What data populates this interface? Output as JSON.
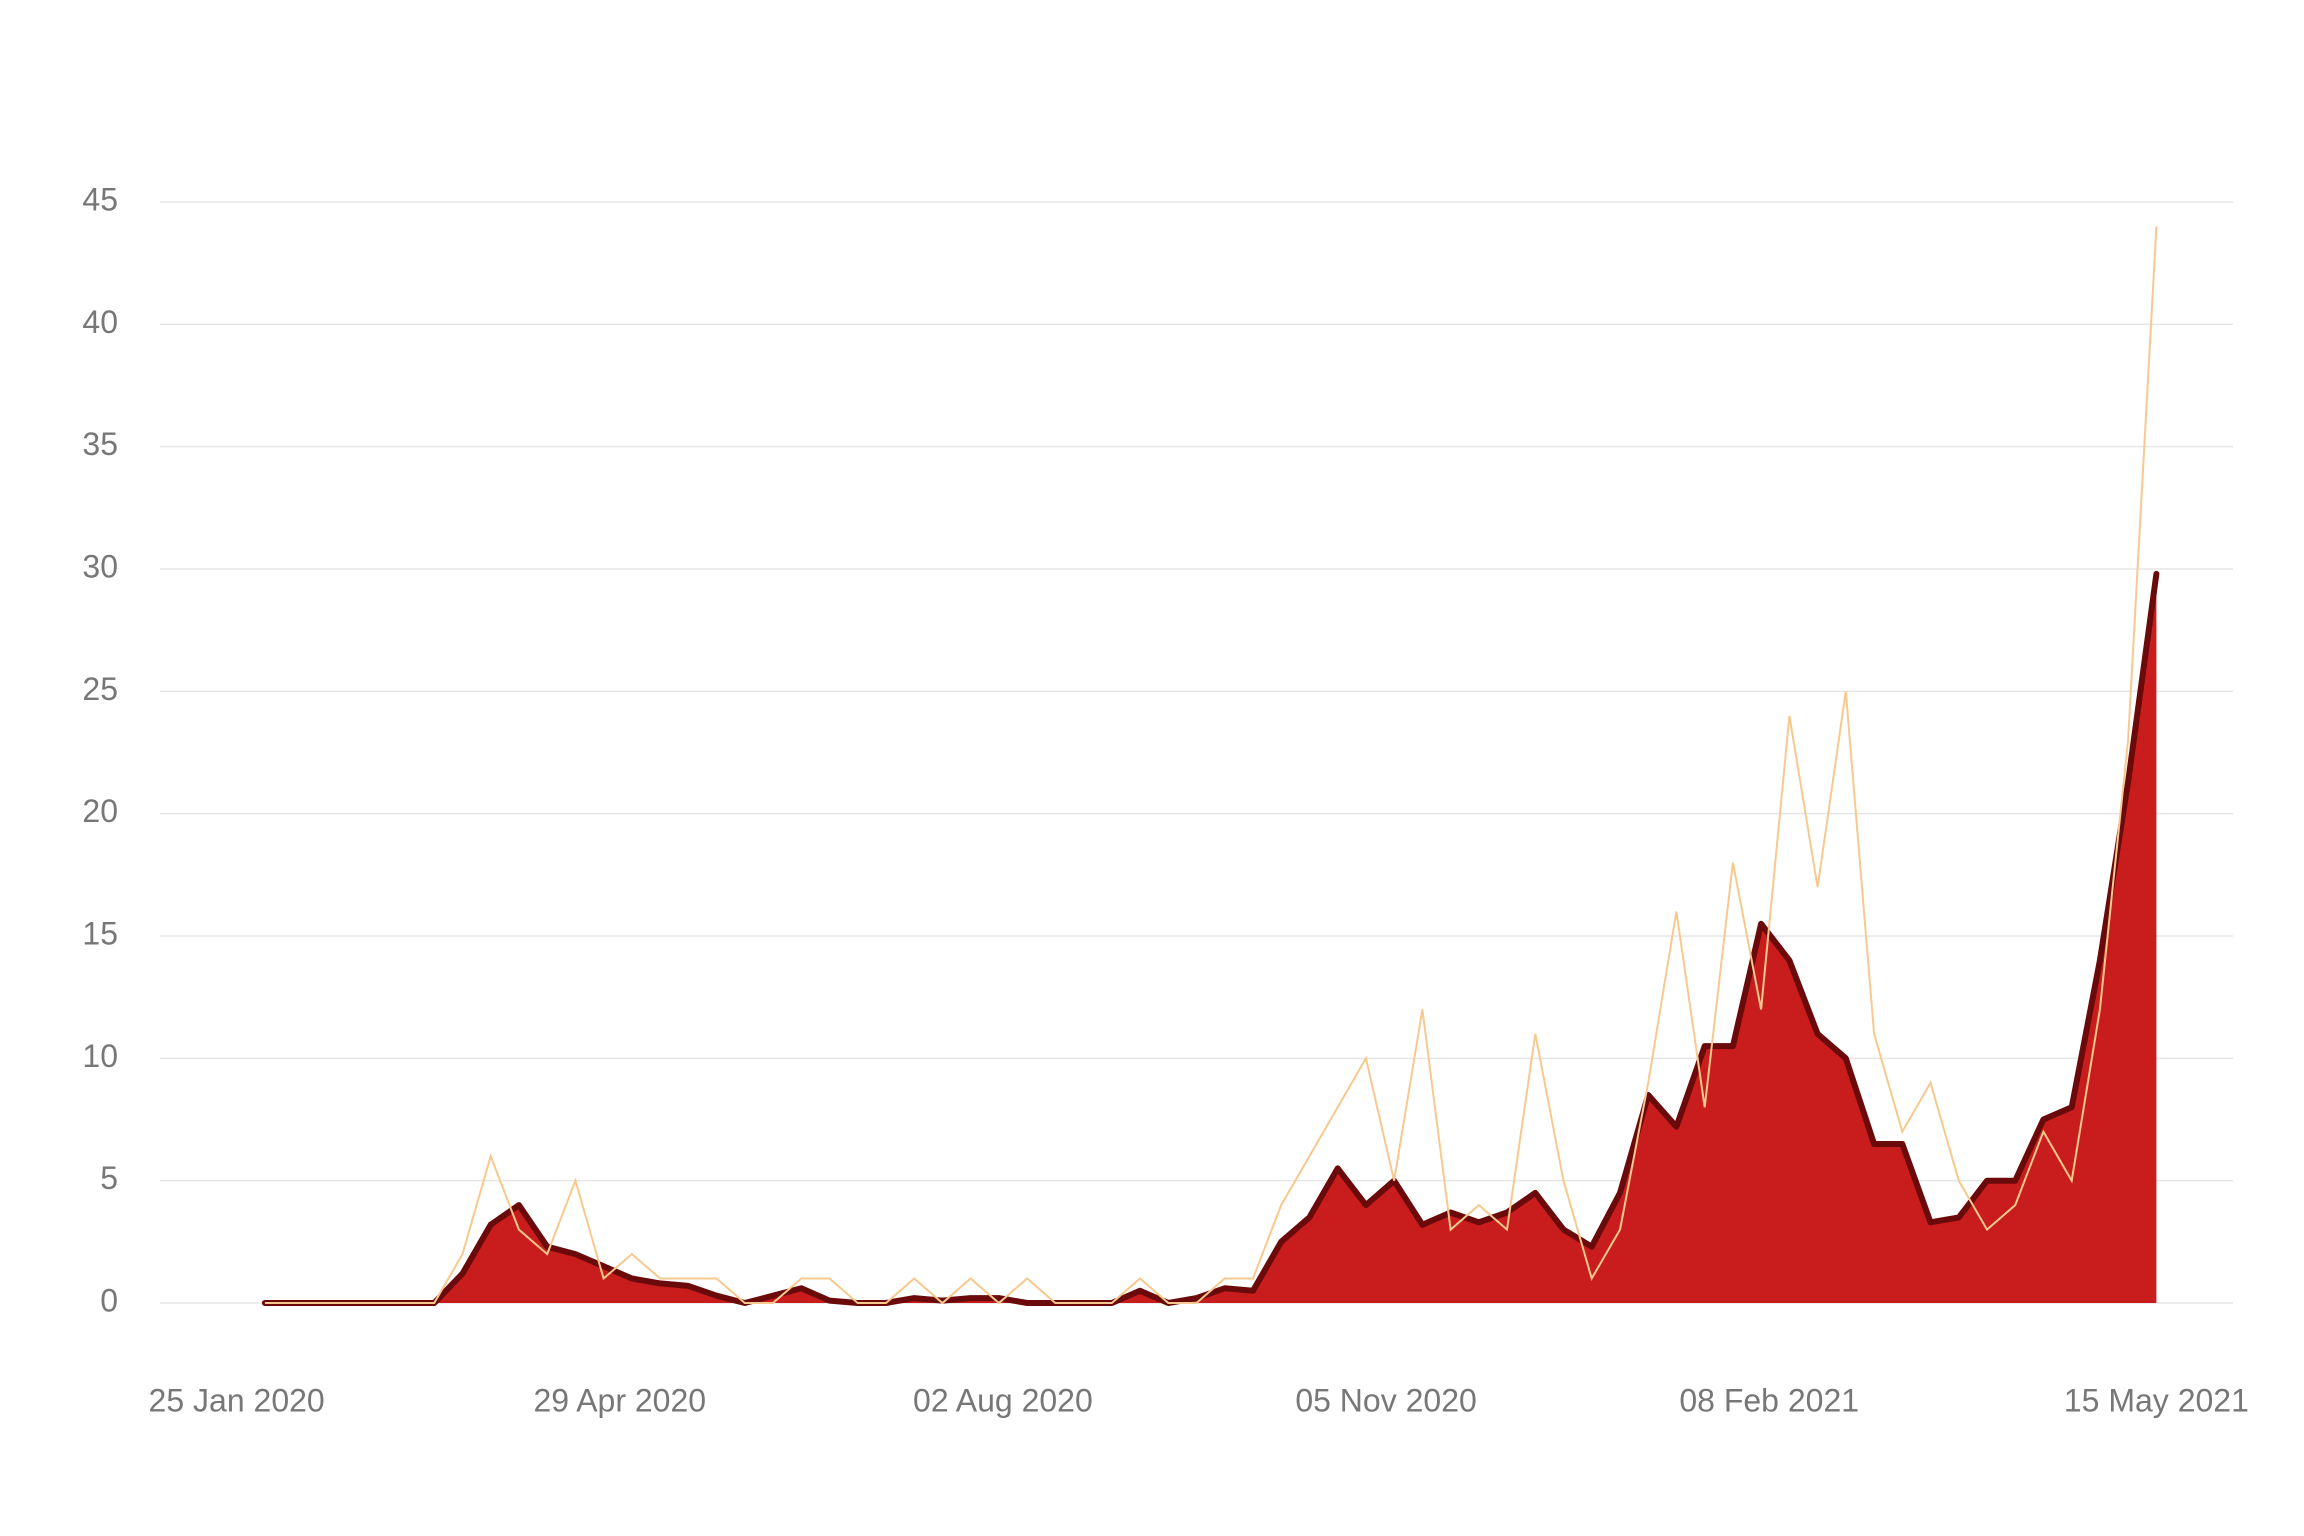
{
  "chart_data": {
    "type": "line",
    "x": [
      "2020-02-01",
      "2020-02-08",
      "2020-02-15",
      "2020-02-22",
      "2020-02-29",
      "2020-03-07",
      "2020-03-14",
      "2020-03-21",
      "2020-03-28",
      "2020-04-04",
      "2020-04-11",
      "2020-04-18",
      "2020-04-25",
      "2020-05-02",
      "2020-05-09",
      "2020-05-16",
      "2020-05-23",
      "2020-05-30",
      "2020-06-06",
      "2020-06-13",
      "2020-06-20",
      "2020-06-27",
      "2020-07-04",
      "2020-07-11",
      "2020-07-18",
      "2020-07-25",
      "2020-08-01",
      "2020-08-08",
      "2020-08-15",
      "2020-08-22",
      "2020-08-29",
      "2020-09-05",
      "2020-09-12",
      "2020-09-19",
      "2020-09-26",
      "2020-10-03",
      "2020-10-10",
      "2020-10-17",
      "2020-10-24",
      "2020-10-31",
      "2020-11-07",
      "2020-11-14",
      "2020-11-21",
      "2020-11-28",
      "2020-12-05",
      "2020-12-12",
      "2020-12-19",
      "2020-12-26",
      "2021-01-02",
      "2021-01-09",
      "2021-01-16",
      "2021-01-23",
      "2021-01-30",
      "2021-02-06",
      "2021-02-13",
      "2021-02-20",
      "2021-02-27",
      "2021-03-06",
      "2021-03-13",
      "2021-03-20",
      "2021-03-27",
      "2021-04-03",
      "2021-04-10",
      "2021-04-17",
      "2021-04-24",
      "2021-05-01",
      "2021-05-08",
      "2021-05-15"
    ],
    "series": [
      {
        "color": "#f7c98e",
        "style": "line",
        "values": [
          0,
          0,
          0,
          0,
          0,
          0,
          0,
          2,
          6,
          3,
          2,
          5,
          1,
          2,
          1,
          1,
          1,
          0,
          0,
          1,
          1,
          0,
          0,
          1,
          0,
          1,
          0,
          1,
          0,
          0,
          0,
          1,
          0,
          0,
          1,
          1,
          4,
          6,
          8,
          10,
          5,
          12,
          3,
          4,
          3,
          11,
          5,
          1,
          3,
          9,
          16,
          8,
          18,
          12,
          24,
          17,
          25,
          11,
          7,
          9,
          5,
          3,
          4,
          7,
          5,
          12,
          23,
          44
        ]
      },
      {
        "color": "#c91d1d",
        "line_color": "#6b0a0a",
        "style": "area",
        "values": [
          0,
          0,
          0,
          0,
          0,
          0,
          0,
          1.2,
          3.2,
          4,
          2.3,
          2,
          1.5,
          1,
          0.8,
          0.7,
          0.3,
          0,
          0.3,
          0.6,
          0.1,
          0,
          0,
          0.2,
          0.1,
          0.2,
          0.2,
          0,
          0,
          0,
          0,
          0.5,
          0,
          0.2,
          0.6,
          0.5,
          2.5,
          3.5,
          5.5,
          4,
          5,
          3.2,
          3.7,
          3.3,
          3.7,
          4.5,
          3,
          2.3,
          4.5,
          8.5,
          7.2,
          10.5,
          10.5,
          15.5,
          14,
          11,
          10,
          6.5,
          6.5,
          3.3,
          3.5,
          5,
          5,
          7.5,
          8,
          14,
          21.3,
          29.8
        ]
      }
    ],
    "xlim": [
      "2020-01-06",
      "2021-06-03"
    ],
    "xticks": [
      {
        "value": "2020-01-25",
        "label": "25 Jan 2020"
      },
      {
        "value": "2020-04-29",
        "label": "29 Apr 2020"
      },
      {
        "value": "2020-08-02",
        "label": "02 Aug 2020"
      },
      {
        "value": "2020-11-05",
        "label": "05 Nov 2020"
      },
      {
        "value": "2021-02-08",
        "label": "08 Feb 2021"
      },
      {
        "value": "2021-05-15",
        "label": "15 May 2021"
      }
    ],
    "ylim": [
      0,
      45
    ],
    "yticks": [
      0,
      5,
      10,
      15,
      20,
      25,
      30,
      35,
      40,
      45
    ],
    "grid": true
  }
}
